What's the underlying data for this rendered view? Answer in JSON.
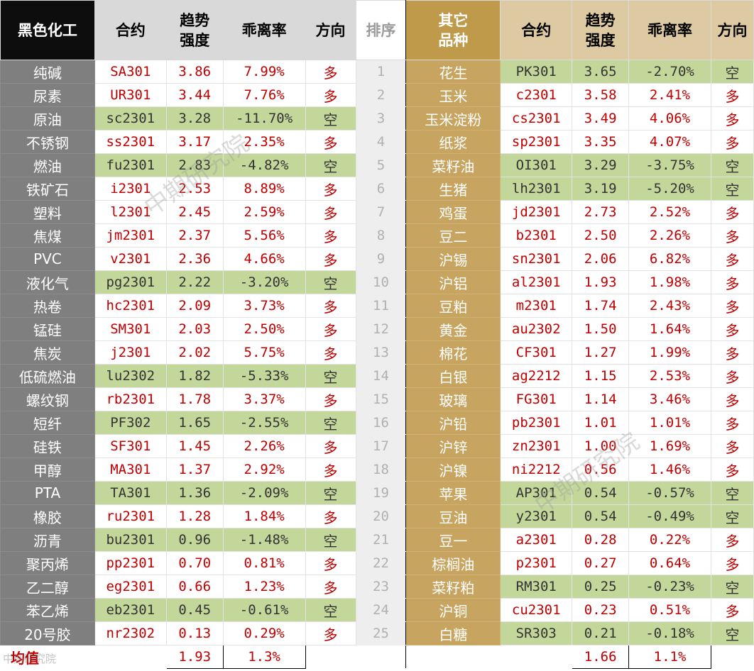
{
  "header": {
    "left_category": "黑色化工",
    "contract": "合约",
    "trend_line1": "趋势",
    "trend_line2": "强度",
    "deviation": "乖离率",
    "direction": "方向",
    "rank": "排序",
    "right_category_line1": "其它",
    "right_category_line2": "品种"
  },
  "rows": [
    {
      "rank": "1",
      "left": {
        "name": "纯碱",
        "contract": "SA301",
        "strength": "3.86",
        "deviation": "7.99%",
        "dir": "多"
      },
      "right": {
        "name": "花生",
        "contract": "PK301",
        "strength": "3.65",
        "deviation": "-2.70%",
        "dir": "空"
      }
    },
    {
      "rank": "2",
      "left": {
        "name": "尿素",
        "contract": "UR301",
        "strength": "3.44",
        "deviation": "7.76%",
        "dir": "多"
      },
      "right": {
        "name": "玉米",
        "contract": "c2301",
        "strength": "3.58",
        "deviation": "2.41%",
        "dir": "多"
      }
    },
    {
      "rank": "3",
      "left": {
        "name": "原油",
        "contract": "sc2301",
        "strength": "3.28",
        "deviation": "-11.70%",
        "dir": "空"
      },
      "right": {
        "name": "玉米淀粉",
        "contract": "cs2301",
        "strength": "3.49",
        "deviation": "4.06%",
        "dir": "多"
      }
    },
    {
      "rank": "4",
      "left": {
        "name": "不锈钢",
        "contract": "ss2301",
        "strength": "3.17",
        "deviation": "2.35%",
        "dir": "多"
      },
      "right": {
        "name": "纸浆",
        "contract": "sp2301",
        "strength": "3.35",
        "deviation": "4.07%",
        "dir": "多"
      }
    },
    {
      "rank": "5",
      "left": {
        "name": "燃油",
        "contract": "fu2301",
        "strength": "2.83",
        "deviation": "-4.82%",
        "dir": "空"
      },
      "right": {
        "name": "菜籽油",
        "contract": "OI301",
        "strength": "3.29",
        "deviation": "-3.75%",
        "dir": "空"
      }
    },
    {
      "rank": "6",
      "left": {
        "name": "铁矿石",
        "contract": "i2301",
        "strength": "2.53",
        "deviation": "8.89%",
        "dir": "多"
      },
      "right": {
        "name": "生猪",
        "contract": "lh2301",
        "strength": "3.19",
        "deviation": "-5.20%",
        "dir": "空"
      }
    },
    {
      "rank": "7",
      "left": {
        "name": "塑料",
        "contract": "l2301",
        "strength": "2.45",
        "deviation": "2.59%",
        "dir": "多"
      },
      "right": {
        "name": "鸡蛋",
        "contract": "jd2301",
        "strength": "2.73",
        "deviation": "2.52%",
        "dir": "多"
      }
    },
    {
      "rank": "8",
      "left": {
        "name": "焦煤",
        "contract": "jm2301",
        "strength": "2.37",
        "deviation": "5.56%",
        "dir": "多"
      },
      "right": {
        "name": "豆二",
        "contract": "b2301",
        "strength": "2.50",
        "deviation": "2.26%",
        "dir": "多"
      }
    },
    {
      "rank": "9",
      "left": {
        "name": "PVC",
        "contract": "v2301",
        "strength": "2.36",
        "deviation": "4.66%",
        "dir": "多"
      },
      "right": {
        "name": "沪锡",
        "contract": "sn2301",
        "strength": "2.06",
        "deviation": "6.82%",
        "dir": "多"
      }
    },
    {
      "rank": "10",
      "left": {
        "name": "液化气",
        "contract": "pg2301",
        "strength": "2.22",
        "deviation": "-3.20%",
        "dir": "空"
      },
      "right": {
        "name": "沪铝",
        "contract": "al2301",
        "strength": "1.93",
        "deviation": "1.98%",
        "dir": "多"
      }
    },
    {
      "rank": "11",
      "left": {
        "name": "热卷",
        "contract": "hc2301",
        "strength": "2.09",
        "deviation": "3.73%",
        "dir": "多"
      },
      "right": {
        "name": "豆粕",
        "contract": "m2301",
        "strength": "1.74",
        "deviation": "2.43%",
        "dir": "多"
      }
    },
    {
      "rank": "12",
      "left": {
        "name": "锰硅",
        "contract": "SM301",
        "strength": "2.03",
        "deviation": "2.50%",
        "dir": "多"
      },
      "right": {
        "name": "黄金",
        "contract": "au2302",
        "strength": "1.50",
        "deviation": "1.64%",
        "dir": "多"
      }
    },
    {
      "rank": "13",
      "left": {
        "name": "焦炭",
        "contract": "j2301",
        "strength": "2.02",
        "deviation": "5.75%",
        "dir": "多"
      },
      "right": {
        "name": "棉花",
        "contract": "CF301",
        "strength": "1.27",
        "deviation": "1.99%",
        "dir": "多"
      }
    },
    {
      "rank": "14",
      "left": {
        "name": "低硫燃油",
        "contract": "lu2302",
        "strength": "1.82",
        "deviation": "-5.33%",
        "dir": "空"
      },
      "right": {
        "name": "白银",
        "contract": "ag2212",
        "strength": "1.15",
        "deviation": "2.53%",
        "dir": "多"
      }
    },
    {
      "rank": "15",
      "left": {
        "name": "螺纹钢",
        "contract": "rb2301",
        "strength": "1.78",
        "deviation": "3.37%",
        "dir": "多"
      },
      "right": {
        "name": "玻璃",
        "contract": "FG301",
        "strength": "1.14",
        "deviation": "3.46%",
        "dir": "多"
      }
    },
    {
      "rank": "16",
      "left": {
        "name": "短纤",
        "contract": "PF302",
        "strength": "1.65",
        "deviation": "-2.55%",
        "dir": "空"
      },
      "right": {
        "name": "沪铅",
        "contract": "pb2301",
        "strength": "1.01",
        "deviation": "1.01%",
        "dir": "多"
      }
    },
    {
      "rank": "17",
      "left": {
        "name": "硅铁",
        "contract": "SF301",
        "strength": "1.45",
        "deviation": "2.26%",
        "dir": "多"
      },
      "right": {
        "name": "沪锌",
        "contract": "zn2301",
        "strength": "1.00",
        "deviation": "1.69%",
        "dir": "多"
      }
    },
    {
      "rank": "18",
      "left": {
        "name": "甲醇",
        "contract": "MA301",
        "strength": "1.37",
        "deviation": "2.92%",
        "dir": "多"
      },
      "right": {
        "name": "沪镍",
        "contract": "ni2212",
        "strength": "0.56",
        "deviation": "1.46%",
        "dir": "多"
      }
    },
    {
      "rank": "19",
      "left": {
        "name": "PTA",
        "contract": "TA301",
        "strength": "1.36",
        "deviation": "-2.09%",
        "dir": "空"
      },
      "right": {
        "name": "苹果",
        "contract": "AP301",
        "strength": "0.54",
        "deviation": "-0.57%",
        "dir": "空"
      }
    },
    {
      "rank": "20",
      "left": {
        "name": "橡胶",
        "contract": "ru2301",
        "strength": "1.28",
        "deviation": "1.84%",
        "dir": "多"
      },
      "right": {
        "name": "豆油",
        "contract": "y2301",
        "strength": "0.54",
        "deviation": "-0.49%",
        "dir": "空"
      }
    },
    {
      "rank": "21",
      "left": {
        "name": "沥青",
        "contract": "bu2301",
        "strength": "0.96",
        "deviation": "-1.48%",
        "dir": "空"
      },
      "right": {
        "name": "豆一",
        "contract": "a2301",
        "strength": "0.28",
        "deviation": "0.22%",
        "dir": "多"
      }
    },
    {
      "rank": "22",
      "left": {
        "name": "聚丙烯",
        "contract": "pp2301",
        "strength": "0.70",
        "deviation": "0.81%",
        "dir": "多"
      },
      "right": {
        "name": "棕榈油",
        "contract": "p2301",
        "strength": "0.27",
        "deviation": "0.64%",
        "dir": "多"
      }
    },
    {
      "rank": "23",
      "left": {
        "name": "乙二醇",
        "contract": "eg2301",
        "strength": "0.66",
        "deviation": "1.23%",
        "dir": "多"
      },
      "right": {
        "name": "菜籽粕",
        "contract": "RM301",
        "strength": "0.25",
        "deviation": "-0.23%",
        "dir": "空"
      }
    },
    {
      "rank": "24",
      "left": {
        "name": "苯乙烯",
        "contract": "eb2301",
        "strength": "0.45",
        "deviation": "-0.61%",
        "dir": "空"
      },
      "right": {
        "name": "沪铜",
        "contract": "cu2301",
        "strength": "0.23",
        "deviation": "0.51%",
        "dir": "多"
      }
    },
    {
      "rank": "25",
      "left": {
        "name": "20号胶",
        "contract": "nr2302",
        "strength": "0.13",
        "deviation": "0.29%",
        "dir": "多"
      },
      "right": {
        "name": "白糖",
        "contract": "SR303",
        "strength": "0.21",
        "deviation": "-0.18%",
        "dir": "空"
      }
    }
  ],
  "footer": {
    "label": "均值",
    "left_strength_avg": "1.93",
    "left_deviation_avg": "1.3%",
    "right_strength_avg": "1.66",
    "right_deviation_avg": "1.1%"
  },
  "watermarks": {
    "main": "中期研究院",
    "bottom": "中期研究院"
  },
  "colors": {
    "long_text": "#c00000",
    "short_fill": "#c4d79b",
    "left_category_fill": "#7f7f7f",
    "right_category_fill": "#c7a561",
    "header_gold": "#bf9a4a",
    "header_beige": "#ddc9a2"
  }
}
